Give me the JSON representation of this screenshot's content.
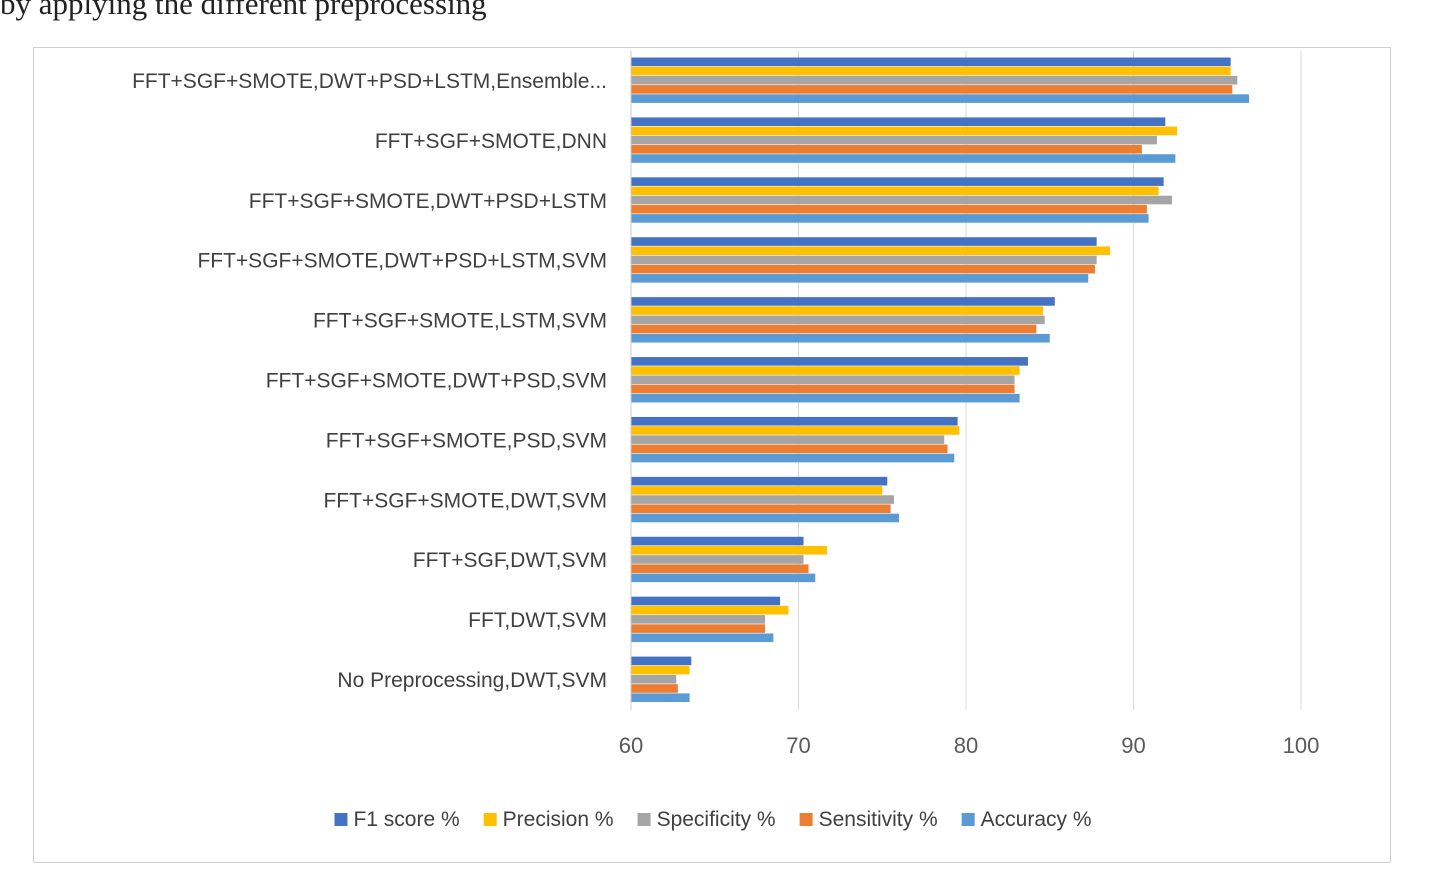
{
  "header": {
    "partial_text": "by applying the different preprocessing"
  },
  "chart_data": {
    "type": "bar",
    "orientation": "horizontal",
    "title": "",
    "xlabel": "",
    "ylabel": "",
    "xlim": [
      60,
      100
    ],
    "x_ticks": [
      60,
      70,
      80,
      90,
      100
    ],
    "grid": true,
    "legend_position": "bottom",
    "categories": [
      "FFT+SGF+SMOTE,DWT+PSD+LSTM,Ensemble...",
      "FFT+SGF+SMOTE,DNN",
      "FFT+SGF+SMOTE,DWT+PSD+LSTM",
      "FFT+SGF+SMOTE,DWT+PSD+LSTM,SVM",
      "FFT+SGF+SMOTE,LSTM,SVM",
      "FFT+SGF+SMOTE,DWT+PSD,SVM",
      "FFT+SGF+SMOTE,PSD,SVM",
      "FFT+SGF+SMOTE,DWT,SVM",
      "FFT+SGF,DWT,SVM",
      "FFT,DWT,SVM",
      "No Preprocessing,DWT,SVM"
    ],
    "series": [
      {
        "name": "F1 score %",
        "color": "#4472C4",
        "values": [
          95.8,
          91.9,
          91.8,
          87.8,
          85.3,
          83.7,
          79.5,
          75.3,
          70.3,
          68.9,
          63.6
        ]
      },
      {
        "name": "Precision %",
        "color": "#FFC000",
        "values": [
          95.8,
          92.6,
          91.5,
          88.6,
          84.6,
          83.2,
          79.6,
          75.0,
          71.7,
          69.4,
          63.5
        ]
      },
      {
        "name": "Specificity %",
        "color": "#A5A5A5",
        "values": [
          96.2,
          91.4,
          92.3,
          87.8,
          84.7,
          82.9,
          78.7,
          75.7,
          70.3,
          68.0,
          62.7
        ]
      },
      {
        "name": "Sensitivity %",
        "color": "#ED7D31",
        "values": [
          95.9,
          90.5,
          90.8,
          87.7,
          84.2,
          82.9,
          78.9,
          75.5,
          70.6,
          68.0,
          62.8
        ]
      },
      {
        "name": "Accuracy %",
        "color": "#5B9BD5",
        "values": [
          96.9,
          92.5,
          90.9,
          87.3,
          85.0,
          83.2,
          79.3,
          76.0,
          71.0,
          68.5,
          63.5
        ]
      }
    ]
  }
}
